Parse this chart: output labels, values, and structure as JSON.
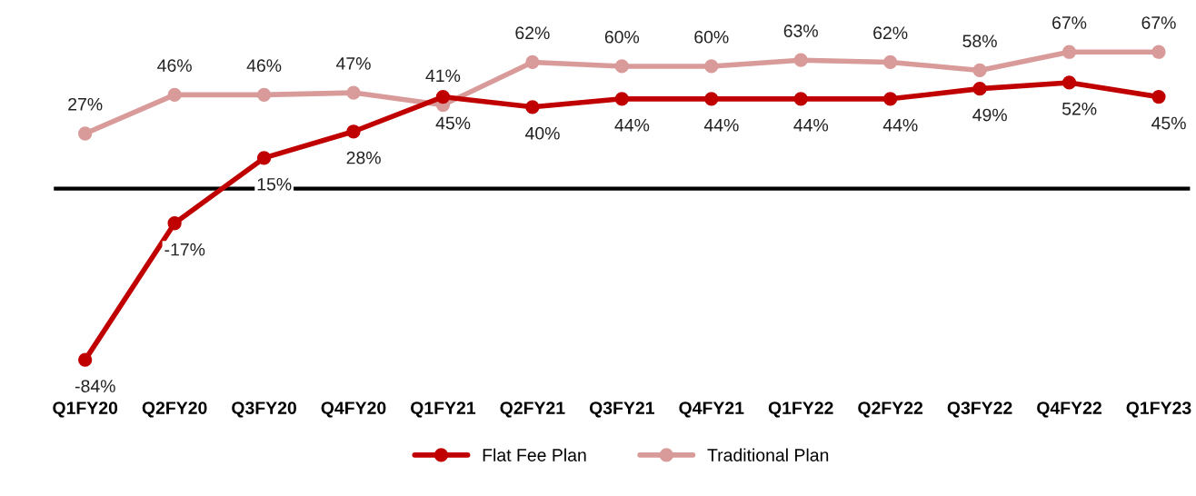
{
  "chart_data": {
    "type": "line",
    "categories": [
      "Q1FY20",
      "Q2FY20",
      "Q3FY20",
      "Q4FY20",
      "Q1FY21",
      "Q2FY21",
      "Q3FY21",
      "Q4FY21",
      "Q1FY22",
      "Q2FY22",
      "Q3FY22",
      "Q4FY22",
      "Q1FY23"
    ],
    "series": [
      {
        "name": "Flat Fee Plan",
        "color": "#c00000",
        "values": [
          -84,
          -17,
          15,
          28,
          45,
          40,
          44,
          44,
          44,
          44,
          49,
          52,
          45
        ],
        "value_labels": [
          "-84%",
          "-17%",
          "15%",
          "28%",
          "45%",
          "40%",
          "44%",
          "44%",
          "44%",
          "44%",
          "49%",
          "52%",
          "45%"
        ]
      },
      {
        "name": "Traditional Plan",
        "color": "#d99a9a",
        "values": [
          27,
          46,
          46,
          47,
          41,
          62,
          60,
          60,
          63,
          62,
          58,
          67,
          67
        ],
        "value_labels": [
          "27%",
          "46%",
          "46%",
          "47%",
          "41%",
          "62%",
          "60%",
          "60%",
          "63%",
          "62%",
          "58%",
          "67%",
          "67%"
        ]
      }
    ],
    "ref_lines": [
      {
        "axis": "y",
        "value": 0,
        "color": "#000000"
      }
    ],
    "marker": "circle",
    "line_style": "solid",
    "legend": "bottom",
    "grid": false,
    "tick_labels": "x"
  }
}
